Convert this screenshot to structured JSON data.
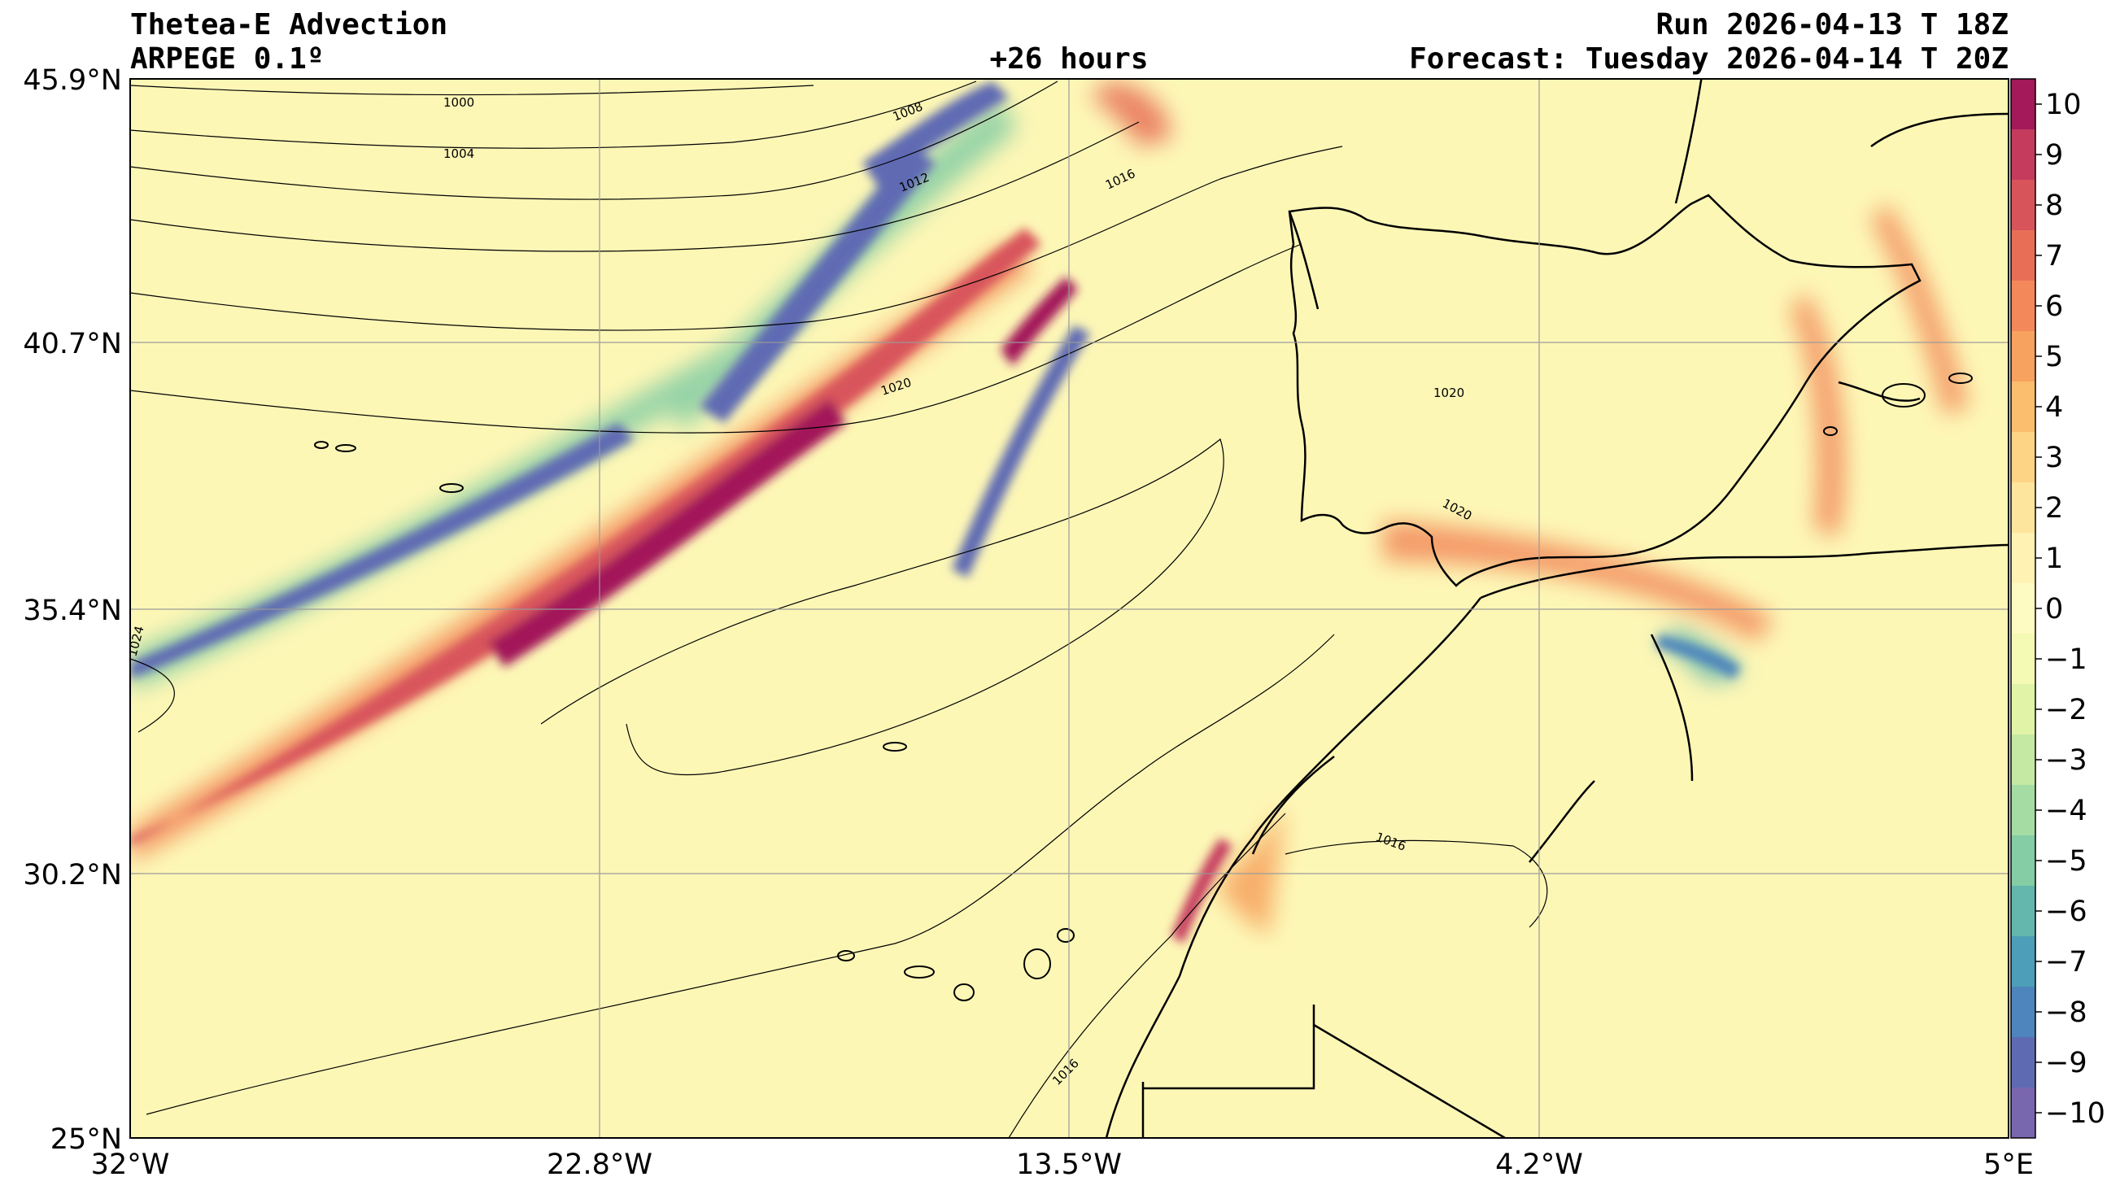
{
  "header": {
    "title": "Thetea-E Advection",
    "model": "ARPEGE 0.1º",
    "lead_time": "+26 hours",
    "run": "Run 2026-04-13 T 18Z",
    "forecast": "Forecast: Tuesday 2026-04-14 T 20Z"
  },
  "map": {
    "extent": {
      "lon_min": -32,
      "lon_max": 5,
      "lat_min": 25,
      "lat_max": 45.9
    },
    "x_ticks": [
      "32°W",
      "22.8°W",
      "13.5°W",
      "4.2°W",
      "5°E"
    ],
    "y_ticks": [
      "45.9°N",
      "40.7°N",
      "35.4°N",
      "30.2°N",
      "25°N"
    ],
    "isobar_labels": [
      "1000",
      "1004",
      "1008",
      "1012",
      "1016",
      "1020",
      "1024",
      "1020",
      "1020",
      "1016",
      "1016"
    ],
    "colors": {
      "background": "#fdf7b6"
    }
  },
  "colorbar": {
    "ticks": [
      "10",
      "9",
      "8",
      "7",
      "6",
      "5",
      "4",
      "3",
      "2",
      "1",
      "0",
      "−1",
      "−2",
      "−3",
      "−4",
      "−5",
      "−6",
      "−7",
      "−8",
      "−9",
      "−10"
    ],
    "colors": [
      "#a3195a",
      "#c53b5e",
      "#d8545b",
      "#e86f56",
      "#f3895a",
      "#f7a25f",
      "#fbbd6e",
      "#fdd385",
      "#fee59d",
      "#fff2b3",
      "#fefbc2",
      "#f4f9b4",
      "#e0f3a6",
      "#c5e9a3",
      "#a5dca4",
      "#84cda5",
      "#63b7ad",
      "#4d9eb8",
      "#4d85bc",
      "#5e6bb3",
      "#7866ae"
    ]
  }
}
